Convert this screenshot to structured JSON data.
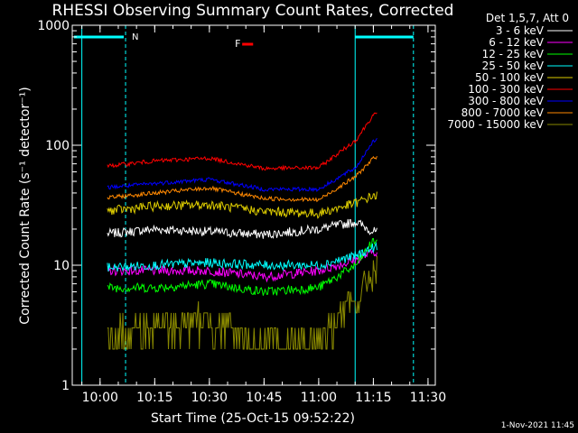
{
  "chart_data": {
    "type": "line",
    "title": "RHESSI Observing Summary Count Rates, Corrected",
    "xlabel": "Start Time (25-Oct-15 09:52:22)",
    "ylabel": "Corrected Count Rate (s⁻¹ detector⁻¹)",
    "x_ticks": [
      "10:00",
      "10:15",
      "10:30",
      "10:45",
      "11:00",
      "11:15",
      "11:30"
    ],
    "y_ticks": [
      "1",
      "10",
      "100",
      "1000"
    ],
    "y_scale": "log",
    "ylim": [
      1,
      1000
    ],
    "xlim": [
      "09:52:22",
      "11:32:00"
    ],
    "legend_title": "Det 1,5,7, Att 0",
    "legend_position": "outside-right",
    "series": [
      {
        "name": "3 - 6 keV",
        "color": "#ffffff",
        "values": [
          [
            10.0,
            18
          ],
          [
            10.25,
            20
          ],
          [
            10.5,
            19
          ],
          [
            10.75,
            18
          ],
          [
            11.0,
            20
          ],
          [
            11.17,
            23
          ],
          [
            11.25,
            19
          ]
        ]
      },
      {
        "name": "6 - 12 keV",
        "color": "#ff00ff",
        "values": [
          [
            10.0,
            9
          ],
          [
            10.25,
            9
          ],
          [
            10.5,
            9
          ],
          [
            10.75,
            8
          ],
          [
            11.0,
            9
          ],
          [
            11.17,
            11
          ],
          [
            11.25,
            13
          ]
        ]
      },
      {
        "name": "12 - 25 keV",
        "color": "#00ff00",
        "values": [
          [
            10.0,
            6.5
          ],
          [
            10.25,
            6.5
          ],
          [
            10.5,
            7
          ],
          [
            10.75,
            6
          ],
          [
            11.0,
            6.5
          ],
          [
            11.17,
            10
          ],
          [
            11.25,
            16
          ]
        ]
      },
      {
        "name": "25 - 50 keV",
        "color": "#00ffff",
        "values": [
          [
            10.0,
            9.5
          ],
          [
            10.25,
            10
          ],
          [
            10.5,
            10.5
          ],
          [
            10.75,
            10
          ],
          [
            11.0,
            10
          ],
          [
            11.17,
            12
          ],
          [
            11.25,
            14
          ]
        ]
      },
      {
        "name": "50 - 100 keV",
        "color": "#ddcc00",
        "values": [
          [
            10.0,
            28
          ],
          [
            10.25,
            31
          ],
          [
            10.5,
            32
          ],
          [
            10.75,
            28
          ],
          [
            11.0,
            27
          ],
          [
            11.17,
            33
          ],
          [
            11.25,
            38
          ]
        ]
      },
      {
        "name": "100 - 300 keV",
        "color": "#ff0000",
        "values": [
          [
            10.0,
            66
          ],
          [
            10.25,
            74
          ],
          [
            10.5,
            78
          ],
          [
            10.75,
            64
          ],
          [
            11.0,
            65
          ],
          [
            11.17,
            110
          ],
          [
            11.25,
            180
          ]
        ]
      },
      {
        "name": "300 - 800 keV",
        "color": "#0000ff",
        "values": [
          [
            10.0,
            44
          ],
          [
            10.25,
            48
          ],
          [
            10.5,
            52
          ],
          [
            10.75,
            43
          ],
          [
            11.0,
            43
          ],
          [
            11.17,
            65
          ],
          [
            11.25,
            110
          ]
        ]
      },
      {
        "name": "800 - 7000 keV",
        "color": "#ff8800",
        "values": [
          [
            10.0,
            36
          ],
          [
            10.25,
            40
          ],
          [
            10.5,
            44
          ],
          [
            10.75,
            36
          ],
          [
            11.0,
            35
          ],
          [
            11.17,
            55
          ],
          [
            11.25,
            78
          ]
        ]
      },
      {
        "name": "7000 - 15000 keV",
        "color": "#888800",
        "values": [
          [
            10.0,
            2.5
          ],
          [
            10.25,
            3
          ],
          [
            10.5,
            3.5
          ],
          [
            10.75,
            2
          ],
          [
            11.0,
            2.5
          ],
          [
            11.17,
            5
          ],
          [
            11.25,
            9
          ]
        ]
      }
    ],
    "annotations": [
      {
        "text": "N",
        "color": "#00ffff"
      },
      {
        "text": "F",
        "color": "#ff0000"
      }
    ],
    "footer": "1-Nov-2021 11:45"
  }
}
